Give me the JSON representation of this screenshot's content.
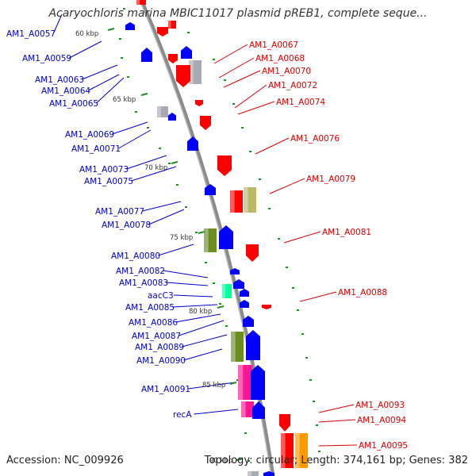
{
  "title": "Acaryochloris marina MBIC11017 plasmid pREB1, complete seque...",
  "accession": "Accession: NC_009926",
  "summary": "Topology: circular; Length: 374,161 bp; Genes: 382",
  "ticks": [
    "60 kbp",
    "65 kbp",
    "70 kbp",
    "75 kbp",
    "80 kbp",
    "85 kbp",
    "90 kbp"
  ],
  "left_labels": [
    "AM1_A0057",
    "AM1_A0059",
    "AM1_A0063",
    "AM1_A0064",
    "AM1_A0065",
    "AM1_A0069",
    "AM1_A0071",
    "AM1_A0073",
    "AM1_A0075",
    "AM1_A0077",
    "AM1_A0078",
    "AM1_A0080",
    "AM1_A0082",
    "AM1_A0083",
    "aacC3",
    "AM1_A0085",
    "AM1_A0086",
    "AM1_A0087",
    "AM1_A0089",
    "AM1_A0090",
    "AM1_A0091",
    "recA"
  ],
  "right_labels": [
    "AM1_A0067",
    "AM1_A0068",
    "AM1_A0070",
    "AM1_A0072",
    "AM1_A0074",
    "AM1_A0076",
    "AM1_A0079",
    "AM1_A0081",
    "AM1_A0088",
    "AM1_A0093",
    "AM1_A0094",
    "AM1_A0095"
  ],
  "colors": {
    "forward": "#ff0000",
    "reverse": "#0000ff",
    "backbone": "#999999",
    "green_olive": "#6b8e23",
    "khaki": "#bdb76b",
    "magenta": "#ff1493",
    "teal": "#00ff99",
    "orange": "#ff9900",
    "grey": "#a9a9b4",
    "dots": "#228b22"
  }
}
